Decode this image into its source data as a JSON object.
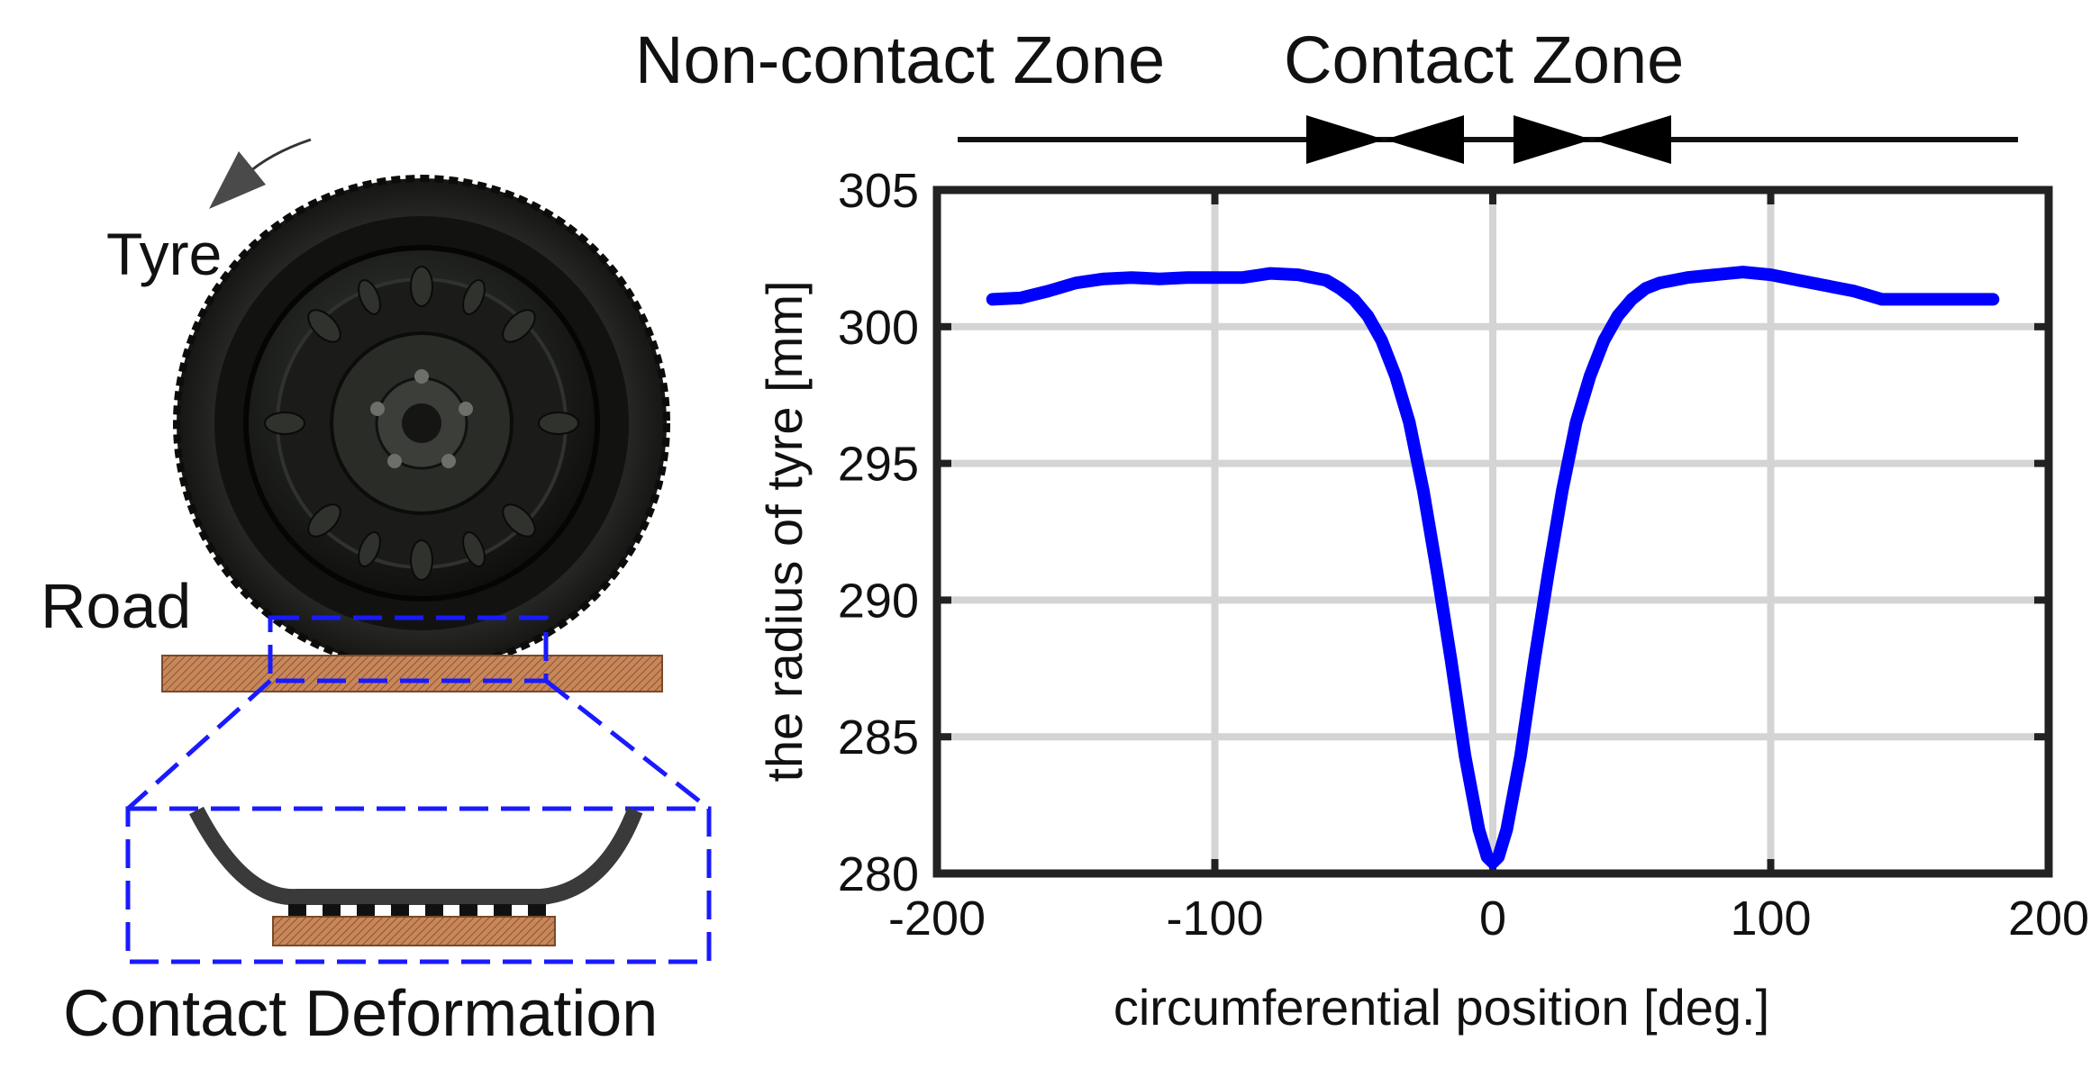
{
  "labels": {
    "non_contact_zone": "Non-contact Zone",
    "contact_zone": "Contact Zone",
    "tyre": "Tyre",
    "road": "Road",
    "contact_deformation": "Contact Deformation"
  },
  "colors": {
    "curve": "#0000ff",
    "guide_box": "#1a1aff",
    "road_fill": "#c8875a",
    "road_edge": "#7a4a2a",
    "tyre_rubber": "#1e1f1d",
    "axes_frame": "#222222",
    "grid": "#d4d4d4"
  },
  "icons": {
    "rotation_arrow": "curved-arrow-icon",
    "zone_arrows": "triangle-arrow-icon"
  },
  "chart_data": {
    "type": "line",
    "xlabel": "circumferential position [deg.]",
    "ylabel": "the radius of tyre [mm]",
    "xlim": [
      -200,
      200
    ],
    "ylim": [
      280,
      305
    ],
    "xticks": [
      "-200",
      "-100",
      "0",
      "100",
      "200"
    ],
    "yticks": [
      "305",
      "300",
      "295",
      "290",
      "285",
      "280"
    ],
    "grid": true,
    "series": [
      {
        "color": "#0000ff",
        "x": [
          -180,
          -170,
          -160,
          -150,
          -140,
          -130,
          -120,
          -110,
          -100,
          -90,
          -80,
          -70,
          -60,
          -55,
          -50,
          -45,
          -40,
          -35,
          -30,
          -25,
          -20,
          -15,
          -10,
          -5,
          -2,
          0,
          2,
          5,
          10,
          15,
          20,
          25,
          30,
          35,
          40,
          45,
          50,
          55,
          60,
          70,
          80,
          90,
          100,
          110,
          120,
          130,
          140,
          150,
          160,
          170,
          180
        ],
        "y": [
          301.0,
          301.05,
          301.3,
          301.6,
          301.75,
          301.8,
          301.75,
          301.8,
          301.8,
          301.8,
          301.95,
          301.9,
          301.7,
          301.4,
          301.0,
          300.4,
          299.5,
          298.2,
          296.5,
          294.0,
          291.0,
          287.8,
          284.3,
          281.6,
          280.6,
          280.4,
          280.6,
          281.6,
          284.3,
          287.8,
          291.0,
          294.0,
          296.5,
          298.2,
          299.5,
          300.4,
          301.0,
          301.4,
          301.6,
          301.8,
          301.9,
          302.0,
          301.9,
          301.7,
          301.5,
          301.3,
          301.0,
          301.0,
          301.0,
          301.0,
          301.0
        ]
      }
    ]
  }
}
